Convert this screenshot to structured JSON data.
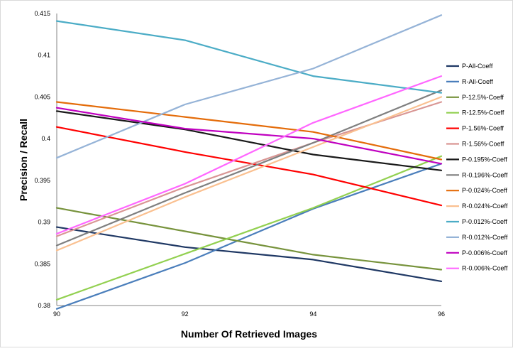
{
  "chart_data": {
    "type": "line",
    "title": "",
    "xlabel": "Number Of Retrieved Images",
    "ylabel": "Precision / Recall",
    "x": [
      90,
      92,
      94,
      96
    ],
    "x_ticks": [
      "90",
      "92",
      "94",
      "96"
    ],
    "y_ticks": [
      "0.38",
      "0.385",
      "0.39",
      "0.395",
      "0.4",
      "0.405",
      "0.41",
      "0.415"
    ],
    "xlim": [
      90,
      96
    ],
    "ylim": [
      0.38,
      0.415
    ],
    "grid": false,
    "legend_position": "right",
    "series": [
      {
        "name": "P-All-Coeff",
        "color": "#1f3864",
        "values": [
          0.3894,
          0.387,
          0.3855,
          0.3829
        ]
      },
      {
        "name": "R-All-Coeff",
        "color": "#4a7ebb",
        "values": [
          0.3796,
          0.3851,
          0.3916,
          0.397
        ]
      },
      {
        "name": "P-12.5%-Coeff",
        "color": "#77933c",
        "values": [
          0.3917,
          0.3889,
          0.3861,
          0.3843
        ]
      },
      {
        "name": "R-12.5%-Coeff",
        "color": "#92d050",
        "values": [
          0.3807,
          0.3862,
          0.3917,
          0.3979
        ]
      },
      {
        "name": "P-1.56%-Coeff",
        "color": "#ff0000",
        "values": [
          0.4014,
          0.3984,
          0.3957,
          0.392
        ]
      },
      {
        "name": "R-1.56%-Coeff",
        "color": "#d99694",
        "values": [
          0.3883,
          0.3942,
          0.3995,
          0.4044
        ]
      },
      {
        "name": "P-0.195%-Coeff",
        "color": "#1a1a1a",
        "values": [
          0.4033,
          0.4011,
          0.3981,
          0.3962
        ]
      },
      {
        "name": "R-0.196%-Coeff",
        "color": "#7f7f7f",
        "values": [
          0.3872,
          0.3935,
          0.3995,
          0.4058
        ]
      },
      {
        "name": "P-0.024%-Coeff",
        "color": "#e46c0a",
        "values": [
          0.4044,
          0.4026,
          0.4008,
          0.3975
        ]
      },
      {
        "name": "R-0.024%-Coeff",
        "color": "#fac090",
        "values": [
          0.3866,
          0.393,
          0.399,
          0.405
        ]
      },
      {
        "name": "P-0.012%-Coeff",
        "color": "#4bacc6",
        "values": [
          0.4141,
          0.4118,
          0.4075,
          0.4055
        ]
      },
      {
        "name": "R-0.012%-Coeff",
        "color": "#95b3d7",
        "values": [
          0.3977,
          0.4041,
          0.4084,
          0.4148
        ]
      },
      {
        "name": "P-0.006%-Coeff",
        "color": "#c000c0",
        "values": [
          0.4037,
          0.4012,
          0.4,
          0.397
        ]
      },
      {
        "name": "R-0.006%-Coeff",
        "color": "#ff66ff",
        "values": [
          0.3886,
          0.3946,
          0.4019,
          0.4075
        ]
      }
    ]
  }
}
